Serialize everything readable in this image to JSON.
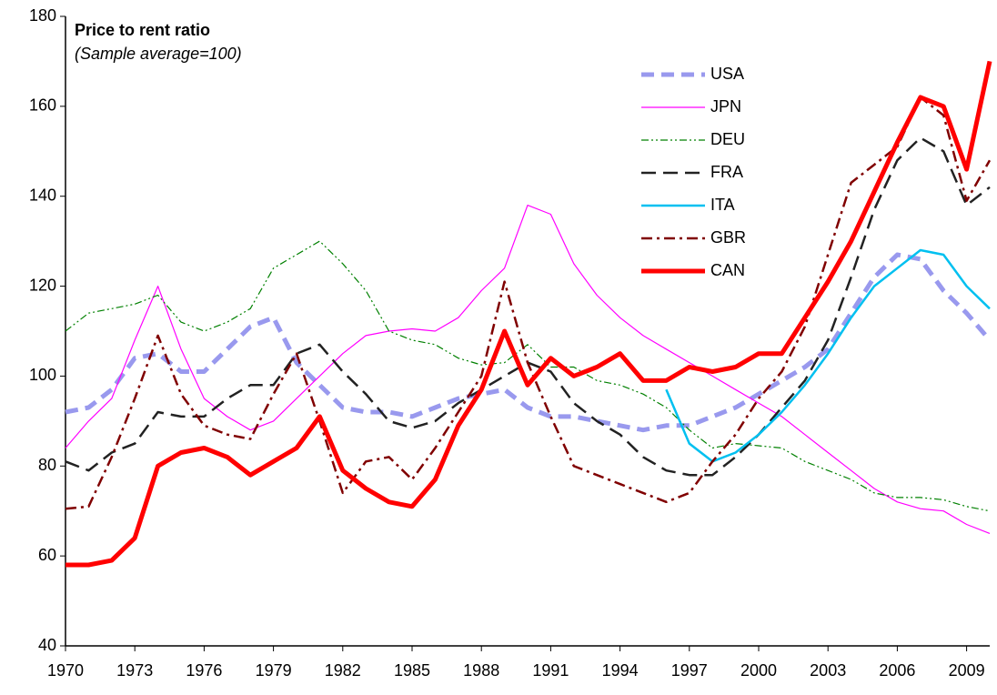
{
  "chart_data": {
    "type": "line",
    "title": "Price to rent ratio",
    "subtitle": "(Sample average=100)",
    "x": [
      1970,
      1971,
      1972,
      1973,
      1974,
      1975,
      1976,
      1977,
      1978,
      1979,
      1980,
      1981,
      1982,
      1983,
      1984,
      1985,
      1986,
      1987,
      1988,
      1989,
      1990,
      1991,
      1992,
      1993,
      1994,
      1995,
      1996,
      1997,
      1998,
      1999,
      2000,
      2001,
      2002,
      2003,
      2004,
      2005,
      2006,
      2007,
      2008,
      2009,
      2010
    ],
    "xlim": [
      1970,
      2010
    ],
    "xticks": [
      1970,
      1973,
      1976,
      1979,
      1982,
      1985,
      1988,
      1991,
      1994,
      1997,
      2000,
      2003,
      2006,
      2009
    ],
    "ylim": [
      40,
      180
    ],
    "yticks": [
      40,
      60,
      80,
      100,
      120,
      140,
      160,
      180
    ],
    "grid": false,
    "legend": "top-right",
    "series": [
      {
        "name": "USA",
        "color": "#9999ee",
        "width": 5,
        "dash": "14 8",
        "values": [
          92,
          93,
          97,
          104,
          105,
          101,
          101,
          106,
          111,
          113,
          103,
          98,
          93,
          92,
          92,
          91,
          93,
          95,
          96,
          97,
          93,
          91,
          91,
          90,
          89,
          88,
          89,
          89,
          91,
          93,
          96,
          99,
          102,
          106,
          114,
          122,
          127,
          126,
          119,
          114,
          108
        ]
      },
      {
        "name": "JPN",
        "color": "#ff00ff",
        "width": 1.2,
        "dash": "none",
        "values": [
          84,
          90,
          95,
          108,
          120,
          106,
          95,
          91,
          88,
          90,
          95,
          100,
          105,
          109,
          110,
          110.5,
          110,
          113,
          119,
          124,
          138,
          136,
          125,
          118,
          113,
          109,
          106,
          103,
          100,
          97,
          94,
          91,
          87,
          83,
          79,
          75,
          72,
          70.5,
          70,
          67,
          65
        ]
      },
      {
        "name": "DEU",
        "color": "#008000",
        "width": 1.2,
        "dash": "8 3 2 3 2 3",
        "values": [
          110,
          114,
          115,
          116,
          118,
          112,
          110,
          112,
          115,
          124,
          127,
          130,
          125,
          119,
          110,
          108,
          107,
          104,
          102.5,
          103,
          107,
          102,
          102,
          99,
          98,
          96,
          93,
          88,
          84,
          85,
          84.5,
          84,
          81,
          79,
          77,
          74,
          73,
          73,
          72.5,
          71,
          70
        ]
      },
      {
        "name": "FRA",
        "color": "#222222",
        "width": 2.5,
        "dash": "16 8",
        "values": [
          81,
          79,
          83,
          85,
          92,
          91,
          91,
          95,
          98,
          98,
          105,
          107,
          101,
          96,
          90,
          88.5,
          90,
          94,
          97,
          100,
          103,
          101,
          94,
          90,
          87,
          82,
          79,
          78,
          78,
          82,
          87,
          93,
          99,
          108,
          122,
          137,
          148,
          153,
          150,
          138,
          142
        ]
      },
      {
        "name": "ITA",
        "color": "#00c0f0",
        "width": 2.5,
        "dash": "none",
        "values": [
          null,
          null,
          null,
          null,
          null,
          null,
          null,
          null,
          null,
          null,
          null,
          null,
          null,
          null,
          null,
          null,
          null,
          null,
          null,
          null,
          null,
          null,
          null,
          null,
          null,
          null,
          97,
          85,
          81,
          83,
          87,
          92,
          98,
          105,
          113,
          120,
          124,
          128,
          127,
          120,
          115
        ]
      },
      {
        "name": "GBR",
        "color": "#800000",
        "width": 2.5,
        "dash": "12 5 3 5",
        "values": [
          70.5,
          71,
          82,
          95,
          109,
          96,
          89,
          87,
          86,
          96,
          105,
          90,
          74,
          81,
          82,
          77,
          84,
          92,
          100,
          121,
          103,
          91,
          80,
          78,
          76,
          74,
          72,
          74,
          81,
          87,
          95,
          101,
          111,
          127,
          143,
          147,
          151,
          162,
          158,
          139,
          148
        ]
      },
      {
        "name": "CAN",
        "color": "#ff0000",
        "width": 5,
        "dash": "none",
        "values": [
          58,
          58,
          59,
          64,
          80,
          83,
          84,
          82,
          78,
          81,
          84,
          91,
          79,
          75,
          72,
          71,
          77,
          89,
          97,
          110,
          98,
          104,
          100,
          102,
          105,
          99,
          99,
          102,
          101,
          102,
          105,
          105,
          113,
          121,
          130,
          141,
          152,
          162,
          160,
          146,
          170
        ]
      }
    ]
  }
}
